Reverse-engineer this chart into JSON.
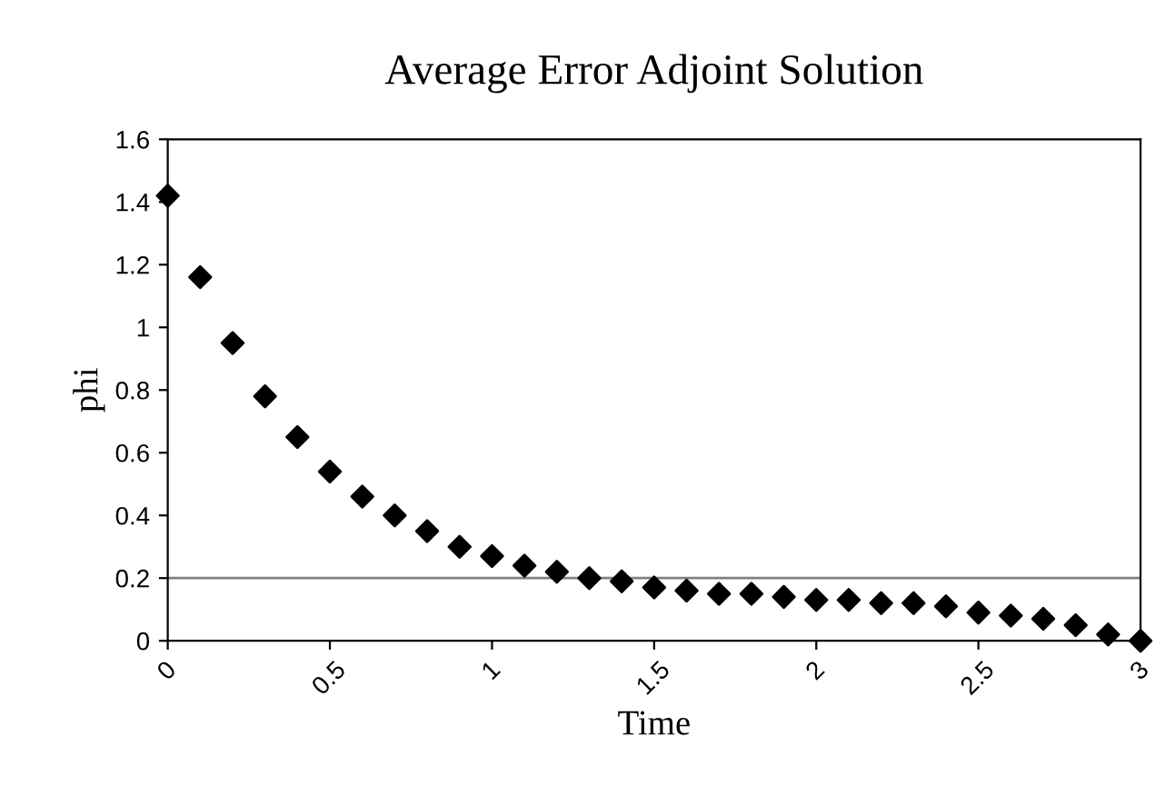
{
  "chart_data": {
    "type": "scatter",
    "title": "Average Error Adjoint Solution",
    "xlabel": "Time",
    "ylabel": "phi",
    "x": [
      0,
      0.1,
      0.2,
      0.3,
      0.4,
      0.5,
      0.6,
      0.7,
      0.8,
      0.9,
      1.0,
      1.1,
      1.2,
      1.3,
      1.4,
      1.5,
      1.6,
      1.7,
      1.8,
      1.9,
      2.0,
      2.1,
      2.2,
      2.3,
      2.4,
      2.5,
      2.6,
      2.7,
      2.8,
      2.9,
      3.0
    ],
    "series": [
      {
        "color": "#000000",
        "values": [
          1.42,
          1.16,
          0.95,
          0.78,
          0.65,
          0.54,
          0.46,
          0.4,
          0.35,
          0.3,
          0.27,
          0.24,
          0.22,
          0.2,
          0.19,
          0.17,
          0.16,
          0.15,
          0.15,
          0.14,
          0.13,
          0.13,
          0.12,
          0.12,
          0.11,
          0.09,
          0.08,
          0.07,
          0.05,
          0.02,
          0
        ]
      }
    ],
    "marker": "diamond",
    "xlim": [
      0,
      3
    ],
    "ylim": [
      0,
      1.6
    ],
    "xticks": [
      0,
      0.5,
      1,
      1.5,
      2,
      2.5,
      3
    ],
    "yticks": [
      0,
      0.2,
      0.4,
      0.6,
      0.8,
      1,
      1.2,
      1.4,
      1.6
    ],
    "ref_lines": [
      {
        "axis": "y",
        "value": 0.2,
        "color": "#808080"
      }
    ],
    "grid": false,
    "legend": false
  }
}
